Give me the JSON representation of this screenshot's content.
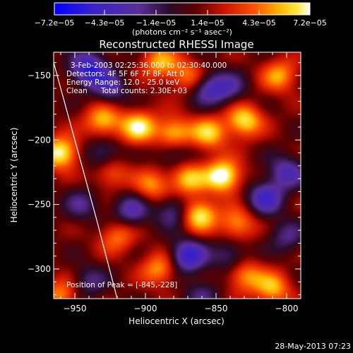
{
  "chart_data": {
    "type": "heatmap",
    "title": "Reconstructed RHESSI Image",
    "xlabel": "Heliocentric X (arcsec)",
    "ylabel": "Heliocentric Y (arcsec)",
    "xlim": [
      -965,
      -790
    ],
    "ylim": [
      -323,
      -132
    ],
    "xticks": [
      -950,
      -900,
      -850,
      -800
    ],
    "xtick_labels": [
      "-950",
      "-900",
      "-850",
      "-800"
    ],
    "yticks": [
      -150,
      -200,
      -250,
      -300
    ],
    "ytick_labels": [
      "-150",
      "-200",
      "-250",
      "-300"
    ],
    "colorbar": {
      "min": -7.2e-05,
      "max": 7.2e-05,
      "tick_labels": [
        "-7.2e-05",
        "-4.3e-05",
        "-1.4e-05",
        "1.4e-05",
        "4.3e-05",
        "7.2e-05"
      ],
      "unit_label": "(photons cm⁻² s⁻¹ asec⁻²)",
      "colormap": "rhessi-blue-purple-red-yellow-white"
    },
    "annotations": {
      "time_range": "3-Feb-2003 02:25:36.000 to 02:30:40.000",
      "detectors": "Detectors: 4F 5F 6F 7F 8F, Att 0",
      "energy_range": "Energy Range: 12.0 - 25.0 keV",
      "method": "Clean",
      "total_counts": "Total counts: 2.30E+03",
      "peak": "Position of Peak = [-845,-228]"
    },
    "limb_curve": [
      [
        -965,
        -140
      ],
      [
        -950,
        -200
      ],
      [
        -935,
        -260
      ],
      [
        -920,
        -323
      ]
    ],
    "sources": [
      {
        "x": -960,
        "y": -210,
        "v": 0.9
      },
      {
        "x": -890,
        "y": -140,
        "v": 0.6
      },
      {
        "x": -870,
        "y": -150,
        "v": 0.5
      },
      {
        "x": -805,
        "y": -150,
        "v": 0.6
      },
      {
        "x": -930,
        "y": -185,
        "v": 0.7
      },
      {
        "x": -905,
        "y": -190,
        "v": 0.8
      },
      {
        "x": -880,
        "y": -195,
        "v": 0.75
      },
      {
        "x": -855,
        "y": -195,
        "v": 0.7
      },
      {
        "x": -830,
        "y": -185,
        "v": 0.8
      },
      {
        "x": -845,
        "y": -228,
        "v": 1.0
      },
      {
        "x": -870,
        "y": -230,
        "v": 0.7
      },
      {
        "x": -895,
        "y": -235,
        "v": 0.55
      },
      {
        "x": -925,
        "y": -225,
        "v": 0.5
      },
      {
        "x": -862,
        "y": -258,
        "v": 0.85
      },
      {
        "x": -835,
        "y": -265,
        "v": 0.6
      },
      {
        "x": -920,
        "y": -275,
        "v": 0.5
      },
      {
        "x": -890,
        "y": -300,
        "v": 0.6
      },
      {
        "x": -830,
        "y": -305,
        "v": 0.6
      },
      {
        "x": -810,
        "y": -315,
        "v": 0.65
      },
      {
        "x": -960,
        "y": -320,
        "v": 0.55
      },
      {
        "x": -880,
        "y": -210,
        "v": -0.4
      },
      {
        "x": -940,
        "y": -145,
        "v": -0.9
      },
      {
        "x": -925,
        "y": -160,
        "v": -0.5
      },
      {
        "x": -855,
        "y": -160,
        "v": -0.6
      },
      {
        "x": -840,
        "y": -160,
        "v": -0.4
      },
      {
        "x": -930,
        "y": -212,
        "v": -0.5
      },
      {
        "x": -910,
        "y": -255,
        "v": -0.55
      },
      {
        "x": -880,
        "y": -255,
        "v": -0.5
      },
      {
        "x": -815,
        "y": -245,
        "v": -0.7
      },
      {
        "x": -800,
        "y": -225,
        "v": -0.6
      },
      {
        "x": -870,
        "y": -290,
        "v": -0.85
      },
      {
        "x": -840,
        "y": -290,
        "v": -0.45
      },
      {
        "x": -945,
        "y": -250,
        "v": -0.4
      },
      {
        "x": -940,
        "y": -310,
        "v": -0.4
      },
      {
        "x": -800,
        "y": -275,
        "v": -0.4
      },
      {
        "x": -860,
        "y": -320,
        "v": -0.35
      }
    ]
  },
  "footer": {
    "timestamp": "28-May-2013 07:23"
  }
}
